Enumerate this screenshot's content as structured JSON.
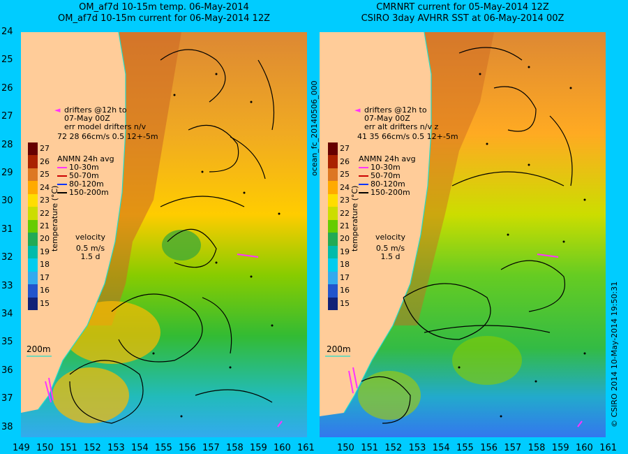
{
  "left_panel": {
    "title_line1": "OM_af7d 10-15m temp. 06-May-2014",
    "title_line2": "OM_af7d 10-15m current for 06-May-2014 12Z",
    "drifters": [
      "drifters @12h to",
      "07-May 00Z",
      "err model drifters n/v",
      "72  28     66cm/s 0.5 12+-5m"
    ],
    "isobath": "200m"
  },
  "right_panel": {
    "title_line1": "CMRNRT current for 05-May-2014 12Z",
    "title_line2": "CSIRO 3day AVHRR SST at 06-May-2014 00Z",
    "drifters": [
      "drifters @12h to",
      "07-May 00Z",
      "err alt drifters n/v z",
      "41  35  66cm/s 0.5 12+-5m"
    ],
    "isobath": "200m",
    "side_id": "ocean_fc_20140506_000",
    "credit": "© CSIRO 2014  10-May-2014 19:50:31"
  },
  "legend": {
    "title": "ANMN 24h avg",
    "items": [
      {
        "label": "10-30m",
        "color": "#ff33ff"
      },
      {
        "label": "50-70m",
        "color": "#cc0000"
      },
      {
        "label": "80-120m",
        "color": "#0033ff"
      },
      {
        "label": "150-200m",
        "color": "#000000"
      }
    ],
    "velocity_title": "velocity",
    "velocity_scale": "0.5 m/s",
    "velocity_time": "1.5 d"
  },
  "colorbar": {
    "title": "temperature (°C)",
    "ticks": [
      "27",
      "26",
      "25",
      "24",
      "23",
      "22",
      "21",
      "20",
      "19",
      "18",
      "17",
      "16",
      "15"
    ],
    "colors": [
      "#660000",
      "#aa2200",
      "#dd7722",
      "#ffaa00",
      "#ffdd00",
      "#ccdd00",
      "#66cc00",
      "#22aa55",
      "#00bbaa",
      "#00ccee",
      "#33aaee",
      "#2255cc",
      "#112277"
    ]
  },
  "axes": {
    "y_ticks": [
      "24",
      "25",
      "26",
      "27",
      "28",
      "29",
      "30",
      "31",
      "32",
      "33",
      "34",
      "35",
      "36",
      "37",
      "38"
    ],
    "x_ticks_left": [
      "149",
      "150",
      "151",
      "152",
      "153",
      "154",
      "155",
      "156",
      "157",
      "158",
      "159",
      "160",
      "161"
    ],
    "x_ticks_right": [
      "150",
      "151",
      "152",
      "153",
      "154",
      "155",
      "156",
      "157",
      "158",
      "159",
      "160",
      "161"
    ]
  }
}
